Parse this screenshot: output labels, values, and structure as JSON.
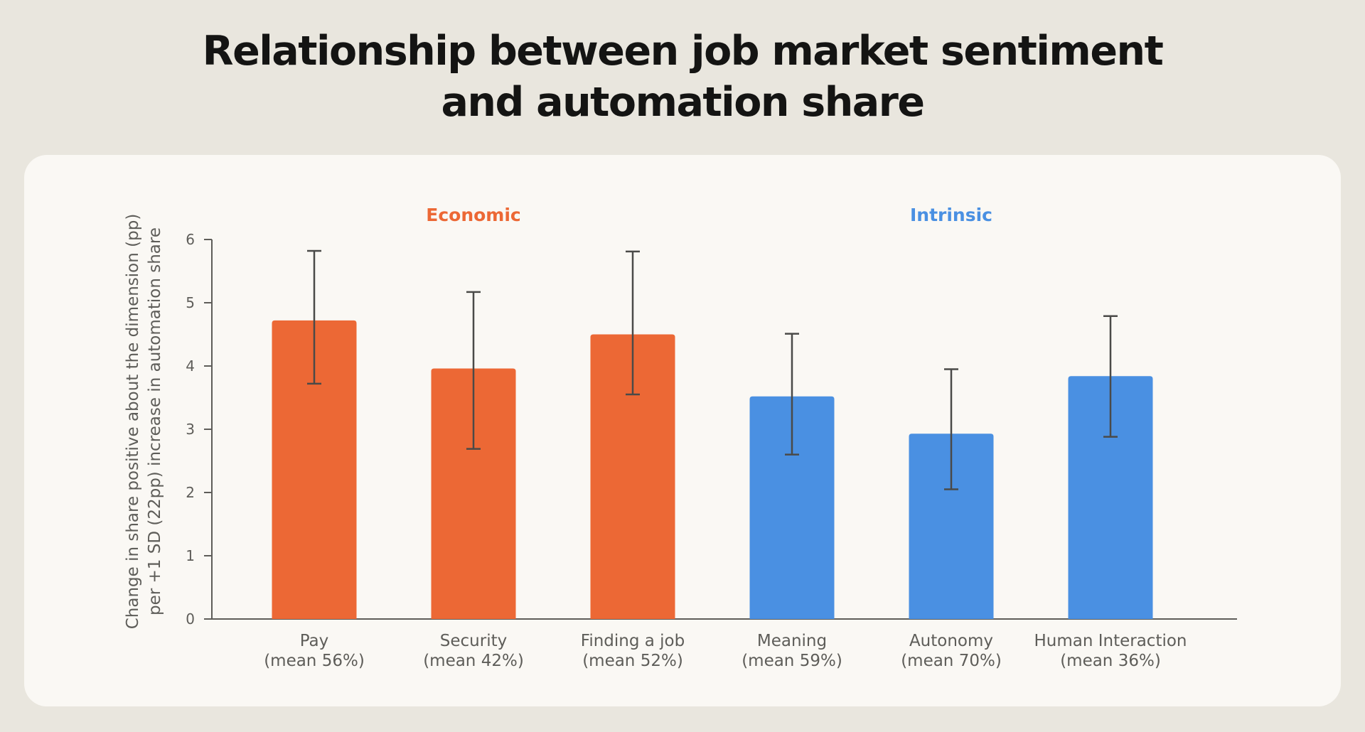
{
  "title": {
    "line1": "Relationship between job market sentiment",
    "line2": "and automation share"
  },
  "colors": {
    "economic": "#EC6835",
    "intrinsic": "#4A90E2",
    "axis": "#5E5D59",
    "errorbar": "#4A4A48"
  },
  "chart_data": {
    "type": "bar",
    "title": "Relationship between job market sentiment and automation share",
    "ylabel_line1": "Change in share positive about the dimension (pp)",
    "ylabel_line2": "per +1 SD (22pp) increase in automation share",
    "xlabel": "",
    "ylim": [
      0,
      6
    ],
    "yticks": [
      "0",
      "1",
      "2",
      "3",
      "4",
      "5",
      "6"
    ],
    "grid": false,
    "groups": [
      {
        "name": "Economic",
        "color": "#EC6835",
        "categories": [
          0,
          1,
          2
        ]
      },
      {
        "name": "Intrinsic",
        "color": "#4A90E2",
        "categories": [
          3,
          4,
          5
        ]
      }
    ],
    "categories": [
      {
        "name": "Pay",
        "mean": "(mean 56%)"
      },
      {
        "name": "Security",
        "mean": "(mean 42%)"
      },
      {
        "name": "Finding a job",
        "mean": "(mean 52%)"
      },
      {
        "name": "Meaning",
        "mean": "(mean 59%)"
      },
      {
        "name": "Autonomy",
        "mean": "(mean 70%)"
      },
      {
        "name": "Human Interaction",
        "mean": "(mean 36%)"
      }
    ],
    "values": [
      4.72,
      3.96,
      4.5,
      3.52,
      2.93,
      3.84
    ],
    "error_low": [
      3.72,
      2.69,
      3.55,
      2.6,
      2.05,
      2.88
    ],
    "error_high": [
      5.82,
      5.17,
      5.81,
      4.51,
      3.95,
      4.79
    ]
  }
}
